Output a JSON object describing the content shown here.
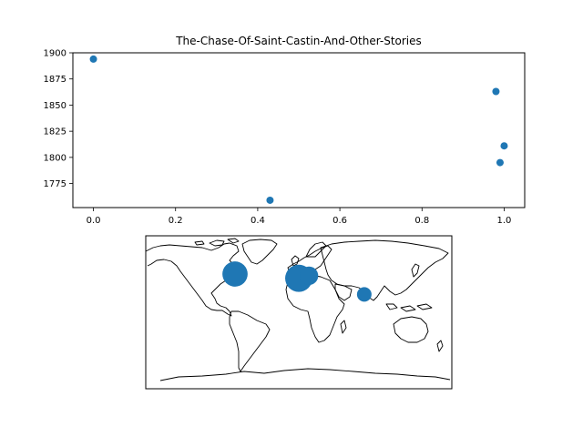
{
  "chart_data": [
    {
      "type": "scatter",
      "title": "The-Chase-Of-Saint-Castin-And-Other-Stories",
      "xlabel": "",
      "ylabel": "",
      "xlim": [
        -0.05,
        1.05
      ],
      "ylim": [
        1752,
        1900
      ],
      "xticks": [
        0.0,
        0.2,
        0.4,
        0.6,
        0.8,
        1.0
      ],
      "xtick_labels": [
        "0.0",
        "0.2",
        "0.4",
        "0.6",
        "0.8",
        "1.0"
      ],
      "yticks": [
        1775,
        1800,
        1825,
        1850,
        1875,
        1900
      ],
      "ytick_labels": [
        "1775",
        "1800",
        "1825",
        "1850",
        "1875",
        "1900"
      ],
      "grid": false,
      "color": "#1f77b4",
      "points": [
        {
          "x": 0.0,
          "y": 1894
        },
        {
          "x": 0.43,
          "y": 1759
        },
        {
          "x": 0.98,
          "y": 1863
        },
        {
          "x": 0.99,
          "y": 1795
        },
        {
          "x": 1.0,
          "y": 1811
        }
      ]
    },
    {
      "type": "scatter",
      "map": "world",
      "projection": "plate-carree",
      "title": "",
      "color": "#1f77b4",
      "points": [
        {
          "lon": -75,
          "lat": 45,
          "weight": 3
        },
        {
          "lon": 0,
          "lat": 40,
          "weight": 3.5
        },
        {
          "lon": 12,
          "lat": 43,
          "weight": 1.6
        },
        {
          "lon": 77,
          "lat": 21,
          "weight": 1
        }
      ]
    }
  ]
}
